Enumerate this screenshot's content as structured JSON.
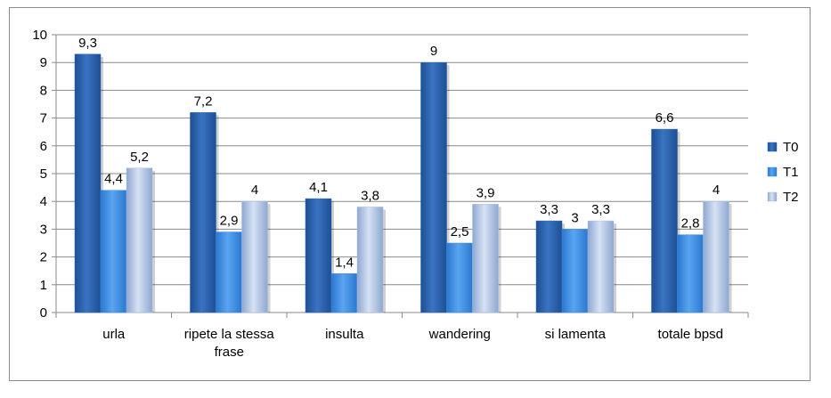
{
  "chart_data": {
    "type": "bar",
    "categories": [
      "urla",
      "ripete la stessa frase",
      "insulta",
      "wandering",
      "si lamenta",
      "totale bpsd"
    ],
    "category_lines": [
      [
        "urla"
      ],
      [
        "ripete la stessa",
        "frase"
      ],
      [
        "insulta"
      ],
      [
        "wandering"
      ],
      [
        "si lamenta"
      ],
      [
        "totale bpsd"
      ]
    ],
    "series": [
      {
        "name": "T0",
        "values": [
          9.3,
          7.2,
          4.1,
          9,
          3.3,
          6.6
        ],
        "labels": [
          "9,3",
          "7,2",
          "4,1",
          "9",
          "3,3",
          "6,6"
        ],
        "color": "#2f67b3"
      },
      {
        "name": "T1",
        "values": [
          4.4,
          2.9,
          1.4,
          2.5,
          3,
          2.8
        ],
        "labels": [
          "4,4",
          "2,9",
          "1,4",
          "2,5",
          "3",
          "2,8"
        ],
        "color": "#3f8ee4"
      },
      {
        "name": "T2",
        "values": [
          5.2,
          4,
          3.8,
          3.9,
          3.3,
          4
        ],
        "labels": [
          "5,2",
          "4",
          "3,8",
          "3,9",
          "3,3",
          "4"
        ],
        "color": "#a9bfe2"
      }
    ],
    "yticks": [
      "0",
      "1",
      "2",
      "3",
      "4",
      "5",
      "6",
      "7",
      "8",
      "9",
      "10"
    ],
    "ylim": [
      0,
      10
    ],
    "grid": true,
    "legend_position": "right"
  }
}
